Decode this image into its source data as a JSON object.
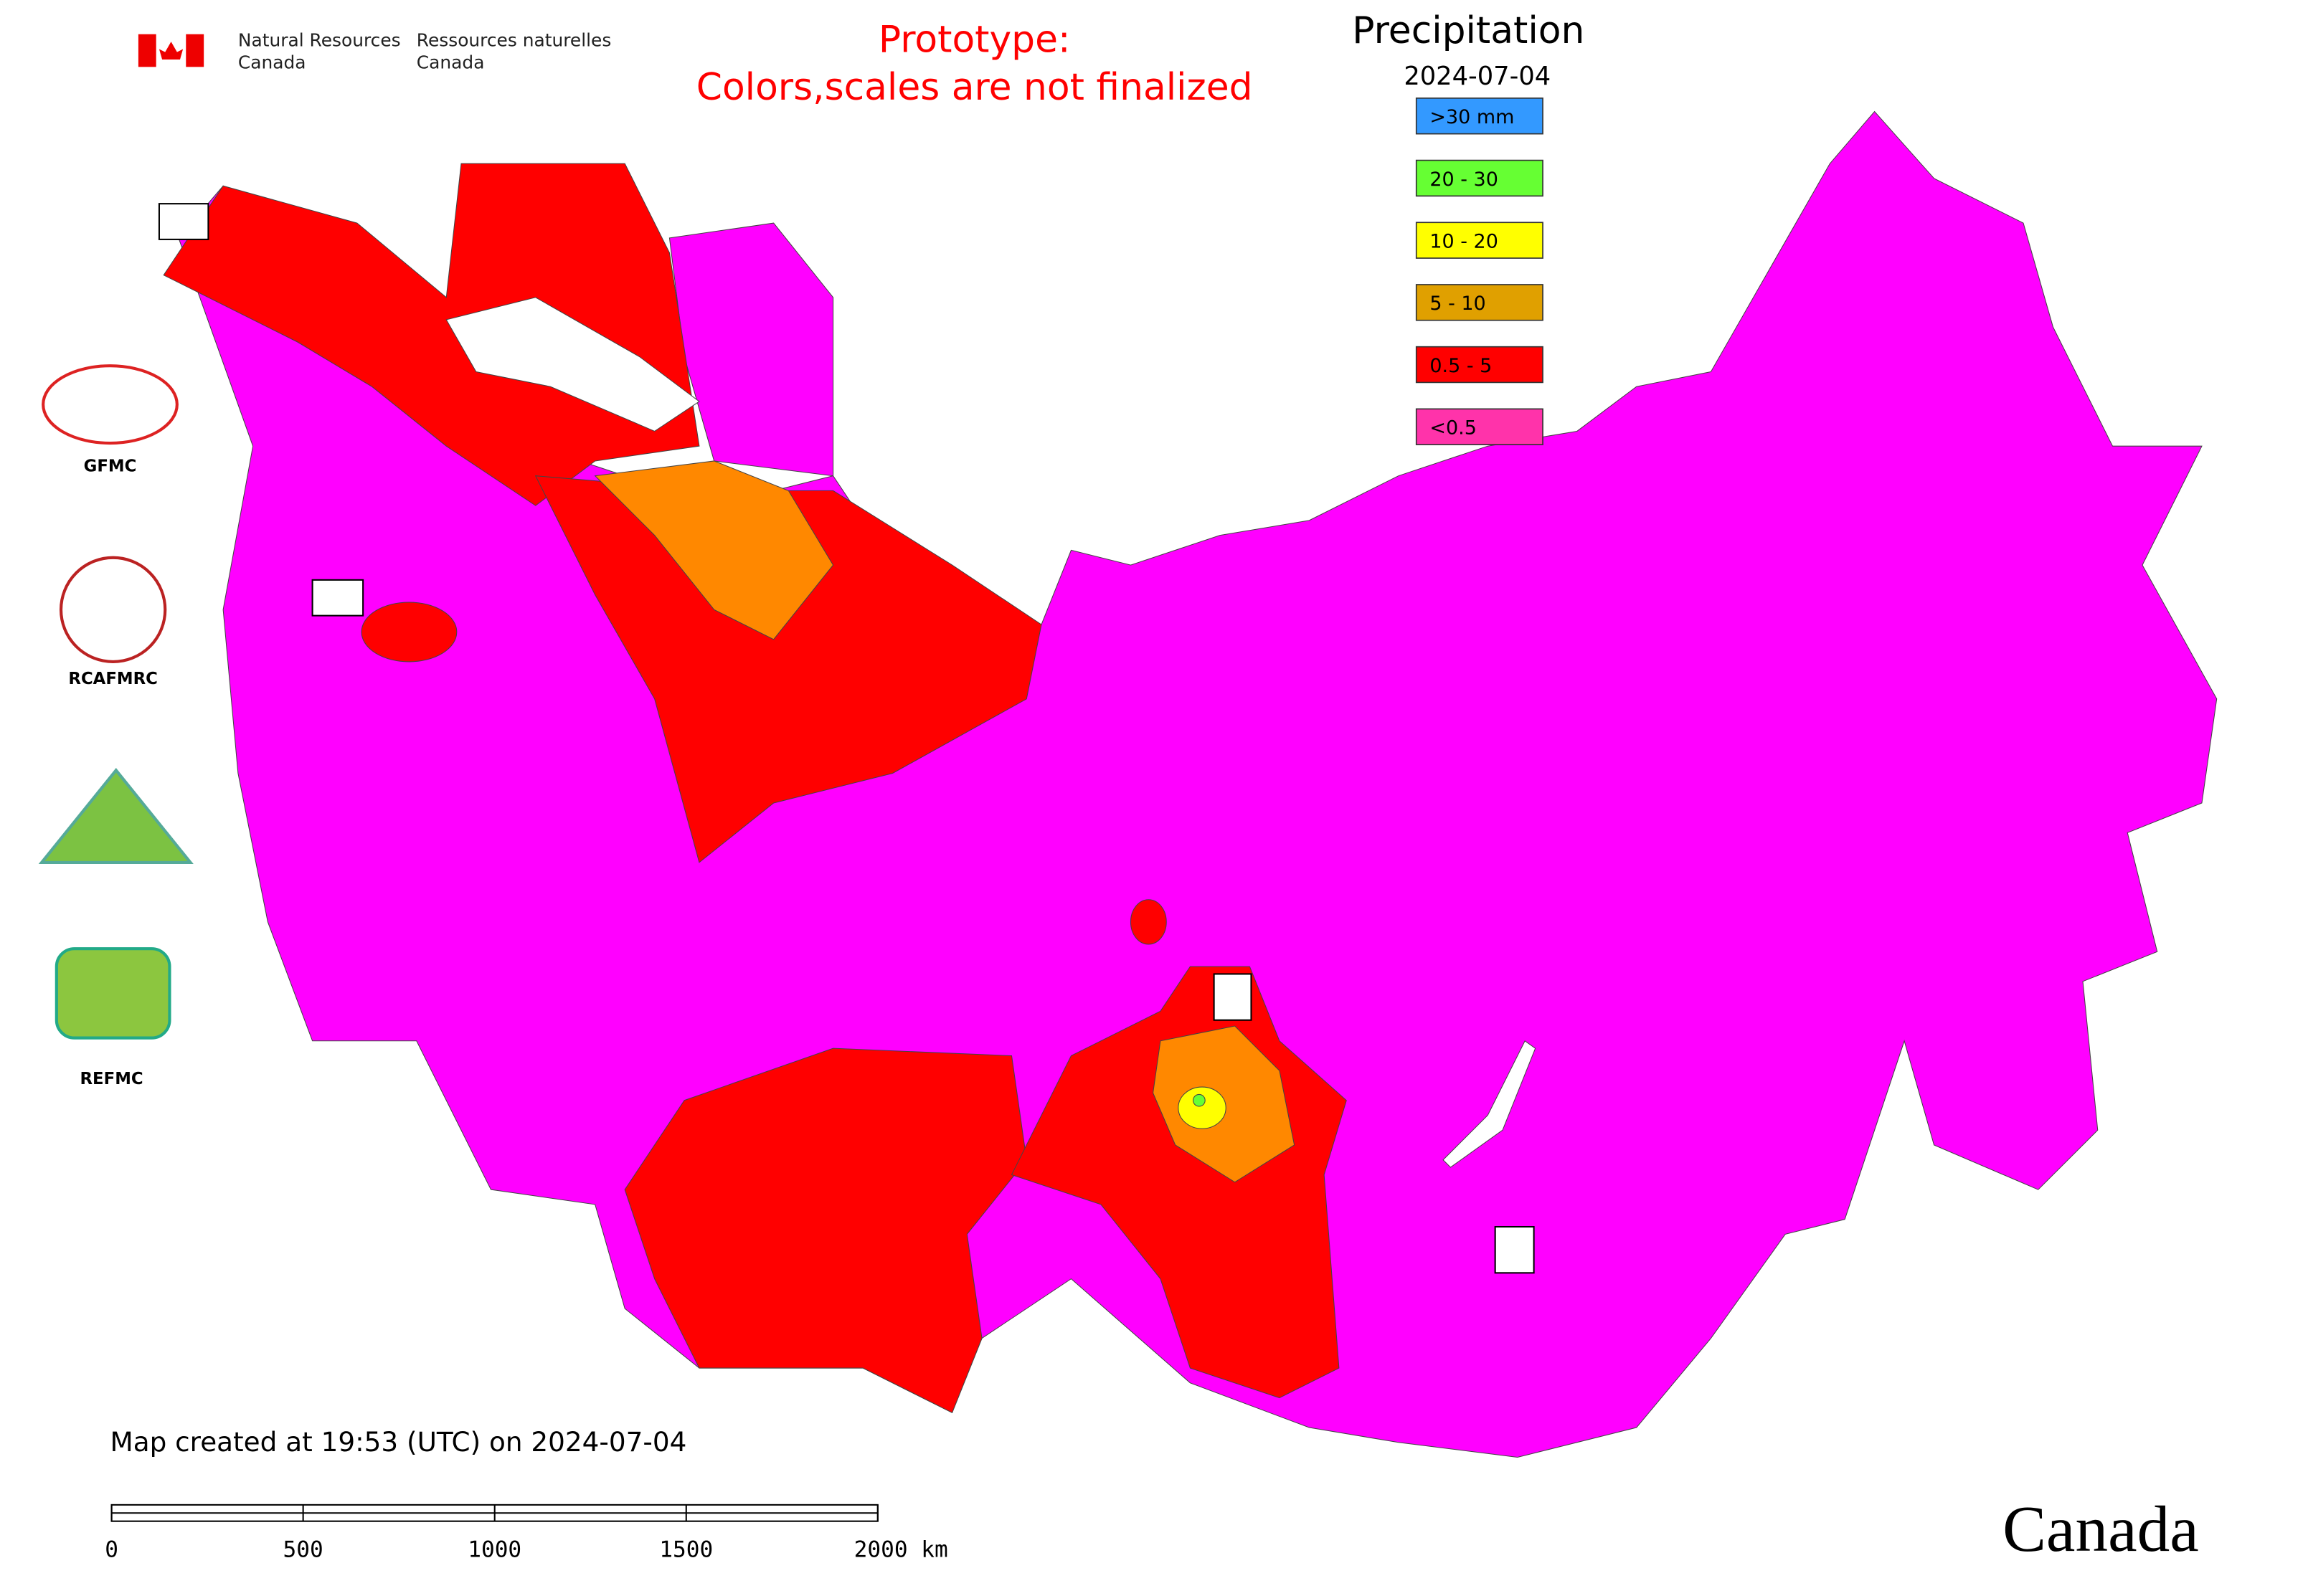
{
  "header": {
    "agency_en": [
      "Natural Resources",
      "Canada"
    ],
    "agency_fr": [
      "Ressources naturelles",
      "Canada"
    ]
  },
  "prototype_note": [
    "Prototype:",
    "Colors,scales are not finalized"
  ],
  "legend": {
    "title": "Precipitation",
    "date": "2024-07-04",
    "items": [
      {
        "label": ">30 mm",
        "color": "#3399ff"
      },
      {
        "label": "20 - 30",
        "color": "#66ff33"
      },
      {
        "label": "10 - 20",
        "color": "#ffff00"
      },
      {
        "label": "5 - 10",
        "color": "#e0a000"
      },
      {
        "label": "0.5 - 5",
        "color": "#ff0000"
      },
      {
        "label": "<0.5",
        "color": "#ff33aa"
      }
    ]
  },
  "logos": [
    "GFMC",
    "RCAFMRC",
    "REFMC"
  ],
  "footer": {
    "created": "Map created at 19:53 (UTC) on 2024-07-04",
    "wordmark": "Canada"
  },
  "scale_bar": {
    "labels": [
      "0",
      "500",
      "1000",
      "1500",
      "2000 km"
    ]
  }
}
